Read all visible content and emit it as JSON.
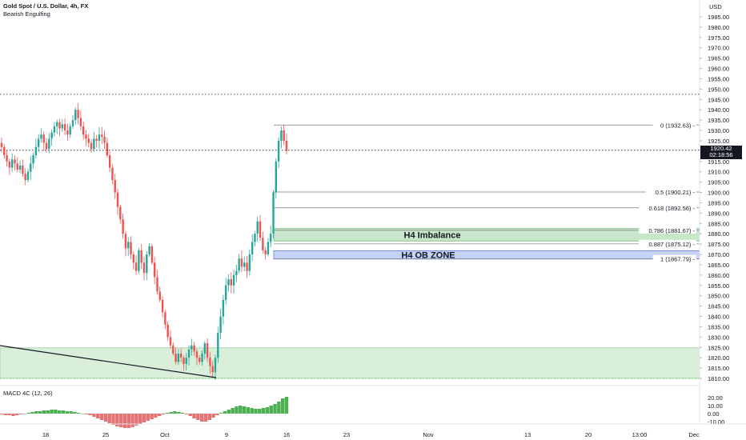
{
  "header": {
    "title": "Gold Spot / U.S. Dollar, 4h, FX",
    "indicator": "Bearish Engulfing"
  },
  "currency": "USD",
  "price_axis": [
    "1985.00",
    "1980.00",
    "1975.00",
    "1970.00",
    "1965.00",
    "1960.00",
    "1955.00",
    "1950.00",
    "1945.00",
    "1940.00",
    "1935.00",
    "1930.00",
    "1925.00",
    "1915.00",
    "1910.00",
    "1905.00",
    "1900.00",
    "1895.00",
    "1890.00",
    "1885.00",
    "1880.00",
    "1875.00",
    "1870.00",
    "1865.00",
    "1860.00",
    "1855.00",
    "1850.00",
    "1845.00",
    "1840.00",
    "1835.00",
    "1830.00",
    "1825.00",
    "1820.00",
    "1815.00",
    "1810.00"
  ],
  "current_price": {
    "price": "1920.42",
    "countdown": "02:18:56"
  },
  "fib_levels": [
    {
      "label": "0 (1932.63)",
      "price": 1932.63
    },
    {
      "label": "0.5 (1900.21)",
      "price": 1900.21
    },
    {
      "label": "0.618 (1892.56)",
      "price": 1892.56
    },
    {
      "label": "0.786 (1881.67)",
      "price": 1881.67
    },
    {
      "label": "0.887 (1875.12)",
      "price": 1875.12
    },
    {
      "label": "1 (1867.79)",
      "price": 1867.79
    }
  ],
  "zones": {
    "imbalance": {
      "label": "H4 Imbalance",
      "top": 1882.5,
      "bottom": 1876.5,
      "color": "#c8e6c9"
    },
    "ob_zone": {
      "label": "H4 OB ZONE",
      "top": 1871.8,
      "bottom": 1867.8,
      "color": "#c5d3f7"
    },
    "demand": {
      "top": 1824.8,
      "bottom": 1810.0,
      "color": "#d4ecd4"
    }
  },
  "reference_lines": [
    {
      "price": 1947.5,
      "style": "dotted"
    },
    {
      "price": 1920.42,
      "style": "dotted"
    },
    {
      "price": 1810.0,
      "style": "dotted-green"
    }
  ],
  "macd": {
    "label": "MACD 4C (12, 26)",
    "axis": [
      "20.00",
      "10.00",
      "0.00",
      "-10.00"
    ],
    "values": [
      -1,
      -2,
      -2,
      -3,
      -2,
      -1,
      0,
      1,
      2,
      3,
      3,
      4,
      4,
      5,
      5,
      4,
      4,
      3,
      3,
      2,
      1,
      0,
      -1,
      -2,
      -4,
      -6,
      -8,
      -10,
      -12,
      -14,
      -16,
      -17,
      -18,
      -18,
      -17,
      -15,
      -13,
      -11,
      -9,
      -7,
      -5,
      -3,
      -1,
      1,
      2,
      3,
      2,
      1,
      -1,
      -3,
      -6,
      -8,
      -10,
      -10,
      -8,
      -5,
      -2,
      1,
      3,
      5,
      7,
      9,
      10,
      9,
      8,
      7,
      6,
      6,
      7,
      8,
      10,
      12,
      15,
      19,
      21
    ]
  },
  "time_axis": [
    "18",
    "25",
    "Oct",
    "9",
    "16",
    "23",
    "Nov",
    "13",
    "20",
    "13:00",
    "Dec"
  ],
  "colors": {
    "up": "#26a69a",
    "down": "#ef5350",
    "macd_up": "#4caf50",
    "macd_down": "#e57373"
  },
  "chart_data": {
    "type": "candlestick",
    "y_range": [
      1807,
      1988
    ],
    "note_series": "approximate close prices",
    "closes": [
      1922,
      1918,
      1915,
      1912,
      1916,
      1914,
      1911,
      1913,
      1909,
      1906,
      1910,
      1914,
      1918,
      1922,
      1926,
      1928,
      1924,
      1921,
      1926,
      1929,
      1932,
      1934,
      1931,
      1933,
      1930,
      1928,
      1932,
      1935,
      1940,
      1936,
      1932,
      1928,
      1926,
      1924,
      1921,
      1926,
      1925,
      1928,
      1927,
      1924,
      1918,
      1912,
      1906,
      1900,
      1893,
      1887,
      1880,
      1873,
      1876,
      1870,
      1866,
      1862,
      1872,
      1866,
      1861,
      1870,
      1874,
      1866,
      1859,
      1852,
      1848,
      1842,
      1836,
      1830,
      1826,
      1822,
      1818,
      1822,
      1820,
      1817,
      1820,
      1824,
      1826,
      1823,
      1820,
      1818,
      1822,
      1827,
      1820,
      1816,
      1813,
      1820,
      1832,
      1840,
      1848,
      1855,
      1858,
      1855,
      1860,
      1862,
      1868,
      1864,
      1866,
      1862,
      1870,
      1876,
      1880,
      1886,
      1878,
      1872,
      1870,
      1876,
      1880,
      1900,
      1915,
      1925,
      1930,
      1925,
      1920
    ]
  }
}
